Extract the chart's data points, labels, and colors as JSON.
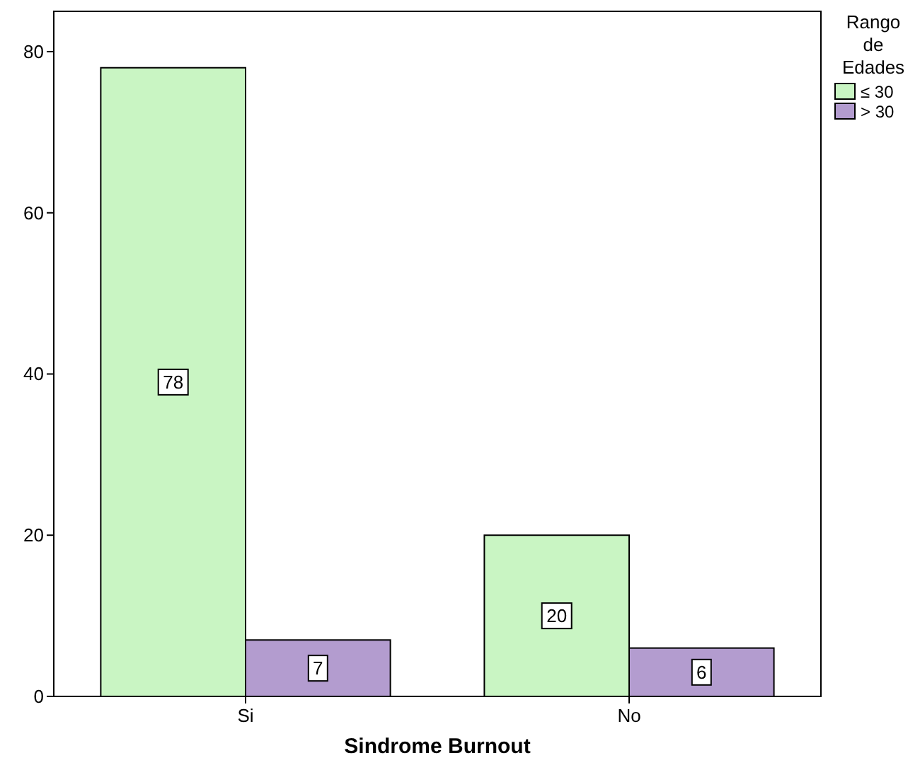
{
  "chart_data": {
    "type": "bar",
    "xlabel": "Sindrome Burnout",
    "legend_title": "Rango de Edades",
    "categories": [
      "Si",
      "No"
    ],
    "series": [
      {
        "name": "≤ 30",
        "color": "#c9f5c3",
        "values": [
          78,
          20
        ]
      },
      {
        "name": "> 30",
        "color": "#b39ccf",
        "values": [
          7,
          6
        ]
      }
    ],
    "ylim": [
      0,
      85
    ],
    "yticks": [
      0,
      20,
      40,
      60,
      80
    ],
    "data_labels": true,
    "legend": "right",
    "grid": false
  }
}
